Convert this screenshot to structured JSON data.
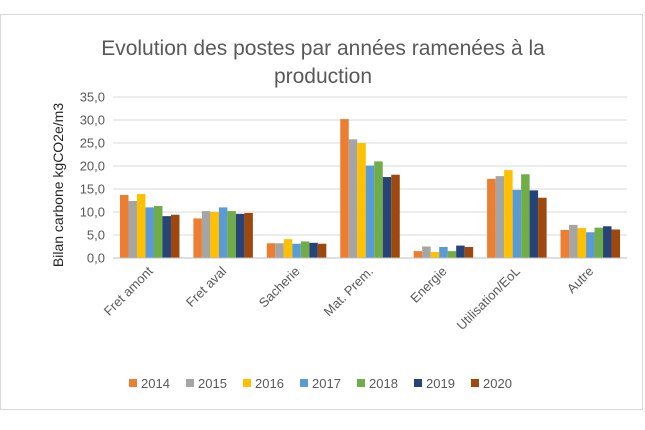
{
  "chart_data": {
    "type": "bar",
    "title_lines": [
      "Evolution des postes par années ramenées à la",
      "production"
    ],
    "ylabel": "Bilan carbone kgCO2e/m3",
    "xlabel": "",
    "ylim": [
      0,
      35
    ],
    "yticks": [
      "0,0",
      "5,0",
      "10,0",
      "15,0",
      "20,0",
      "25,0",
      "30,0",
      "35,0"
    ],
    "grid": true,
    "legend_position": "bottom",
    "categories": [
      "Fret amont",
      "Fret aval",
      "Sacherie",
      "Mat. Prem.",
      "Energie",
      "Utilisation/EoL",
      "Autre"
    ],
    "series": [
      {
        "name": "2014",
        "color": "#ED7D31",
        "values": [
          13.7,
          8.6,
          3.2,
          30.2,
          1.5,
          17.2,
          6.1
        ]
      },
      {
        "name": "2015",
        "color": "#A5A5A5",
        "values": [
          12.4,
          10.2,
          3.2,
          25.8,
          2.5,
          17.8,
          7.2
        ]
      },
      {
        "name": "2016",
        "color": "#FFC000",
        "values": [
          13.9,
          10.0,
          4.1,
          25.0,
          1.3,
          19.1,
          6.5
        ]
      },
      {
        "name": "2017",
        "color": "#5B9BD5",
        "values": [
          11.0,
          11.0,
          3.1,
          20.1,
          2.4,
          14.8,
          5.6
        ]
      },
      {
        "name": "2018",
        "color": "#70AD47",
        "values": [
          11.3,
          10.2,
          3.6,
          21.0,
          1.5,
          18.2,
          6.6
        ]
      },
      {
        "name": "2019",
        "color": "#264478",
        "values": [
          9.1,
          9.6,
          3.3,
          17.6,
          2.7,
          14.7,
          6.9
        ]
      },
      {
        "name": "2020",
        "color": "#9E480E",
        "values": [
          9.4,
          9.8,
          3.1,
          18.1,
          2.4,
          13.1,
          6.2
        ]
      }
    ]
  }
}
